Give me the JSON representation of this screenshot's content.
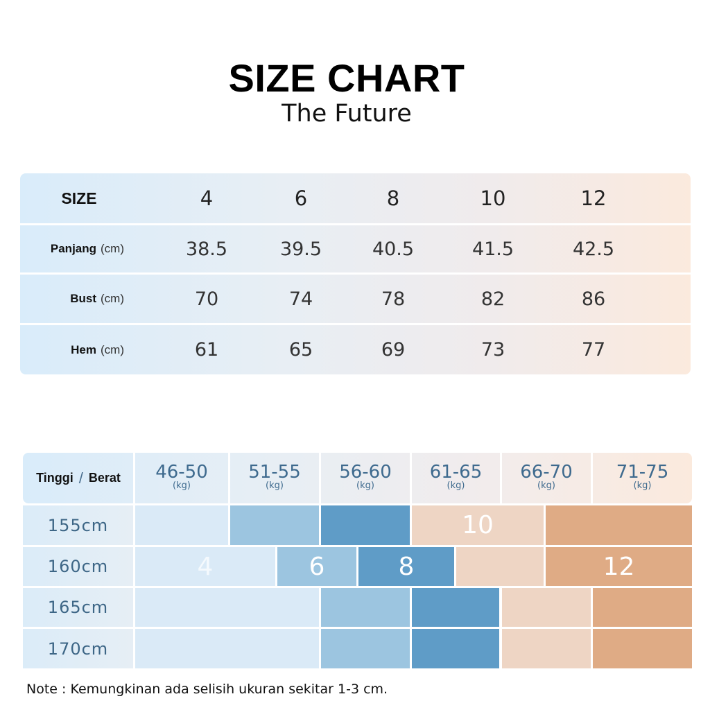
{
  "header": {
    "title": "SIZE CHART",
    "subtitle": "The Future"
  },
  "measurements": {
    "size_label": "SIZE",
    "sizes": [
      "4",
      "6",
      "8",
      "10",
      "12"
    ],
    "rows": [
      {
        "label": "Panjang",
        "unit": "(cm)",
        "values": [
          "38.5",
          "39.5",
          "40.5",
          "41.5",
          "42.5"
        ]
      },
      {
        "label": "Bust",
        "unit": "(cm)",
        "values": [
          "70",
          "74",
          "78",
          "82",
          "86"
        ]
      },
      {
        "label": "Hem",
        "unit": "(cm)",
        "values": [
          "61",
          "65",
          "69",
          "73",
          "77"
        ]
      }
    ]
  },
  "fit_guide": {
    "corner_left": "Tinggi",
    "corner_sep": "/",
    "corner_right": "Berat",
    "weights": [
      {
        "range": "46-50",
        "unit": "(kg)"
      },
      {
        "range": "51-55",
        "unit": "(kg)"
      },
      {
        "range": "56-60",
        "unit": "(kg)"
      },
      {
        "range": "61-65",
        "unit": "(kg)"
      },
      {
        "range": "66-70",
        "unit": "(kg)"
      },
      {
        "range": "71-75",
        "unit": "(kg)"
      }
    ],
    "heights": [
      "155cm",
      "160cm",
      "165cm",
      "170cm"
    ],
    "size_labels": {
      "s4": "4",
      "s6": "6",
      "s8": "8",
      "s10": "10",
      "s12": "12"
    },
    "colors": {
      "size4": "#daeaf7",
      "size6": "#9cc5e0",
      "size8": "#5f9cc7",
      "size10": "#eed5c4",
      "size12": "#dfab85"
    }
  },
  "note": "Note : Kemungkinan ada selisih ukuran sekitar 1-3 cm."
}
